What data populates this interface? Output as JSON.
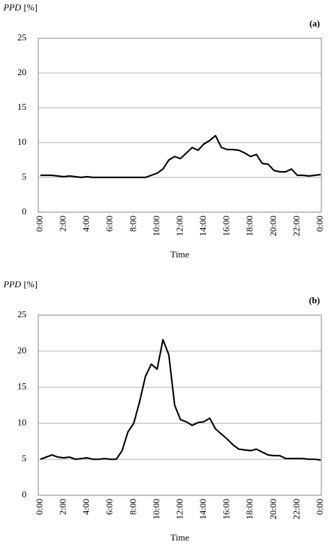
{
  "chart_data": [
    {
      "type": "line",
      "ylabel_symbol": "PPD",
      "ylabel_unit": "[%]",
      "panel_label": "(a)",
      "xlabel": "Time",
      "categories": [
        "0:00",
        null,
        null,
        null,
        "2:00",
        null,
        null,
        null,
        "4:00",
        null,
        null,
        null,
        "6:00",
        null,
        null,
        null,
        "8:00",
        null,
        null,
        null,
        "10:00",
        null,
        null,
        null,
        "12:00",
        null,
        null,
        null,
        "14:00",
        null,
        null,
        null,
        "16:00",
        null,
        null,
        null,
        "18:00",
        null,
        null,
        null,
        "20:00",
        null,
        null,
        null,
        "22:00",
        null,
        null,
        null,
        "0:00"
      ],
      "values": [
        5.3,
        5.3,
        5.3,
        5.2,
        5.1,
        5.2,
        5.1,
        5.0,
        5.1,
        5.0,
        5.0,
        5.0,
        5.0,
        5.0,
        5.0,
        5.0,
        5.0,
        5.0,
        5.0,
        5.3,
        5.6,
        6.2,
        7.5,
        8.0,
        7.7,
        8.5,
        9.3,
        8.9,
        9.8,
        10.3,
        11.0,
        9.3,
        9.0,
        9.0,
        8.9,
        8.5,
        8.0,
        8.3,
        7.0,
        6.9,
        6.0,
        5.8,
        5.8,
        6.2,
        5.3,
        5.3,
        5.2,
        5.3,
        5.4
      ],
      "color": "#000000",
      "ylim": [
        0,
        25
      ],
      "yticks": [
        0,
        5,
        10,
        15,
        20,
        25
      ],
      "grid": true
    },
    {
      "type": "line",
      "ylabel_symbol": "PPD",
      "ylabel_unit": "[%]",
      "panel_label": "(b)",
      "xlabel": "Time",
      "categories": [
        "0:00",
        null,
        null,
        null,
        "2:00",
        null,
        null,
        null,
        "4:00",
        null,
        null,
        null,
        "6:00",
        null,
        null,
        null,
        "8:00",
        null,
        null,
        null,
        "10:00",
        null,
        null,
        null,
        "12:00",
        null,
        null,
        null,
        "14:00",
        null,
        null,
        null,
        "16:00",
        null,
        null,
        null,
        "18:00",
        null,
        null,
        null,
        "20:00",
        null,
        null,
        null,
        "22:00",
        null,
        null,
        null,
        "0:00"
      ],
      "values": [
        5.0,
        5.3,
        5.6,
        5.3,
        5.2,
        5.3,
        5.0,
        5.1,
        5.2,
        5.0,
        5.0,
        5.1,
        5.0,
        5.0,
        6.2,
        8.8,
        10.0,
        13.0,
        16.5,
        18.2,
        17.5,
        21.6,
        19.5,
        12.5,
        10.5,
        10.2,
        9.7,
        10.1,
        10.2,
        10.7,
        9.2,
        8.5,
        7.8,
        7.0,
        6.4,
        6.3,
        6.2,
        6.4,
        6.0,
        5.6,
        5.5,
        5.5,
        5.1,
        5.1,
        5.1,
        5.1,
        5.0,
        5.0,
        4.9
      ],
      "color": "#000000",
      "ylim": [
        0,
        25
      ],
      "yticks": [
        0,
        5,
        10,
        15,
        20,
        25
      ],
      "grid": true
    }
  ]
}
